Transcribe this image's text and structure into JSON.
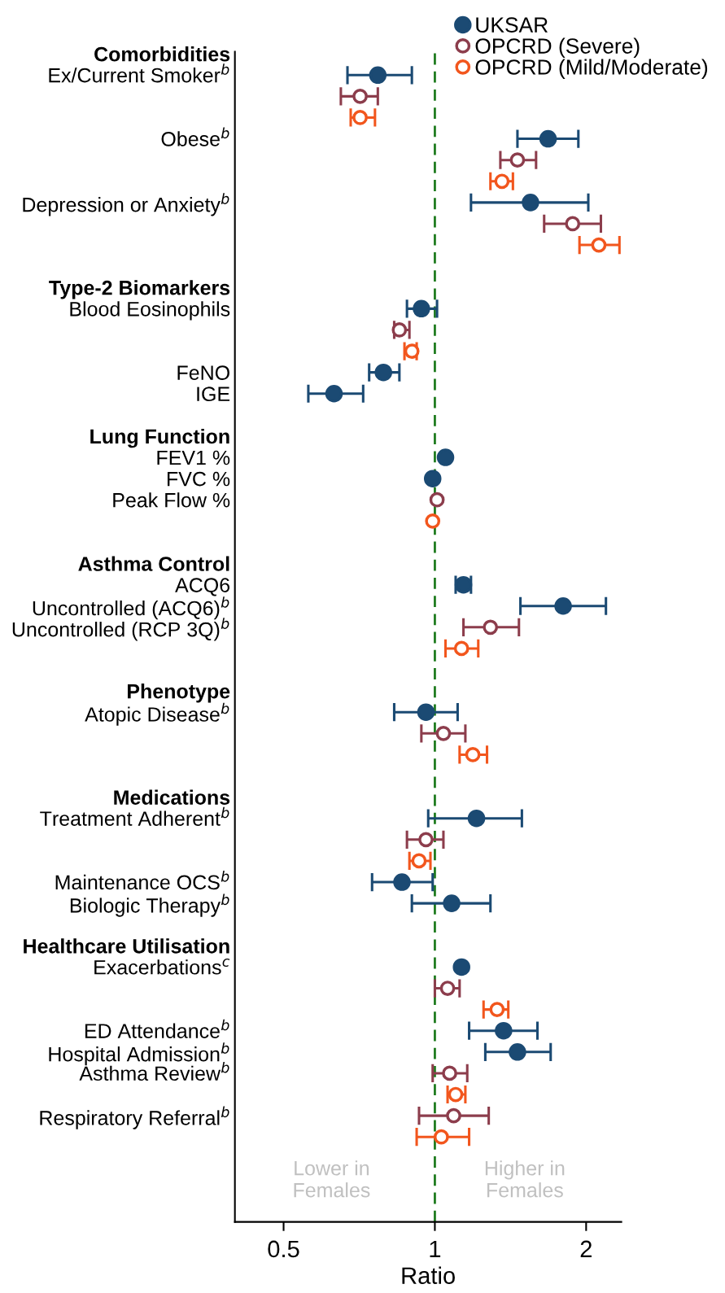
{
  "chart_data": {
    "type": "scatter",
    "orientation": "horizontal",
    "xlabel": "Ratio",
    "categories": [
      "Comorbidities",
      "Ex/Current Smoker$^{b}$",
      null,
      null,
      "Obese$^{b}$",
      null,
      null,
      "Depression or Anxiety$^{b}$",
      null,
      null,
      null,
      "Type-2 Biomarkers",
      "Blood Eosinophils",
      null,
      null,
      "FeNO",
      "IGE",
      null,
      "Lung Function",
      "FEV1 %",
      "FVC %",
      "Peak Flow %",
      null,
      null,
      "Asthma Control",
      "ACQ6",
      "Uncontrolled (ACQ6)$^{b}$",
      "Uncontrolled (RCP 3Q)$^{b}$",
      null,
      null,
      "Phenotype",
      "Atopic Disease$^{b}$",
      null,
      null,
      null,
      "Medications",
      "Treatment Adherent$^{b}$",
      null,
      null,
      "Maintenance OCS$^{b}$",
      "Biologic Therapy$^{b}$",
      null,
      "Healthcare Utilisation",
      "Exacerbations$^{c}$",
      null,
      null,
      "ED Attendance$^{b}$",
      "Hospital Admission$^{b}$",
      "Asthma Review$^{b}$",
      null,
      "Respiratory Referral$^{b}$",
      null,
      null,
      null,
      null
    ],
    "series": [
      {
        "name": "UKSAR",
        "color": "#1b4a73",
        "marker": "circle",
        "values": [
          null,
          0.77,
          null,
          null,
          1.68,
          null,
          null,
          1.55,
          null,
          null,
          null,
          null,
          0.94,
          null,
          null,
          0.79,
          0.63,
          null,
          null,
          1.05,
          0.99,
          null,
          null,
          null,
          null,
          1.14,
          1.8,
          null,
          null,
          null,
          null,
          0.96,
          null,
          null,
          null,
          null,
          1.21,
          null,
          null,
          0.86,
          1.08,
          null,
          null,
          1.13,
          null,
          null,
          1.37,
          1.46,
          null,
          null,
          null,
          null,
          null,
          null,
          null
        ],
        "errors": [
          null,
          [
            0.67,
            0.9
          ],
          null,
          null,
          [
            1.46,
            1.93
          ],
          null,
          null,
          [
            1.18,
            2.02
          ],
          null,
          null,
          null,
          null,
          [
            0.88,
            1.01
          ],
          null,
          null,
          [
            0.74,
            0.85
          ],
          [
            0.56,
            0.72
          ],
          null,
          null,
          null,
          null,
          null,
          null,
          null,
          null,
          [
            1.1,
            1.18
          ],
          [
            1.48,
            2.19
          ],
          null,
          null,
          null,
          null,
          [
            0.83,
            1.11
          ],
          null,
          null,
          null,
          null,
          [
            0.97,
            1.49
          ],
          null,
          null,
          [
            0.75,
            0.99
          ],
          [
            0.9,
            1.29
          ],
          null,
          null,
          null,
          null,
          null,
          [
            1.17,
            1.6
          ],
          [
            1.26,
            1.7
          ],
          null,
          null,
          null,
          null,
          null,
          null,
          null
        ]
      },
      {
        "name": "OPCRD (Severe)",
        "color": "#8c3d4c",
        "marker": "open circle",
        "values": [
          null,
          null,
          0.71,
          null,
          null,
          1.46,
          null,
          null,
          1.88,
          null,
          null,
          null,
          null,
          0.85,
          null,
          null,
          null,
          null,
          null,
          null,
          null,
          1.01,
          null,
          null,
          null,
          null,
          null,
          1.29,
          null,
          null,
          null,
          null,
          1.04,
          null,
          null,
          null,
          null,
          0.96,
          null,
          null,
          null,
          null,
          null,
          null,
          1.06,
          null,
          null,
          null,
          1.07,
          null,
          1.09,
          null,
          null,
          null,
          null
        ],
        "errors": [
          null,
          null,
          [
            0.65,
            0.77
          ],
          null,
          null,
          [
            1.35,
            1.59
          ],
          null,
          null,
          [
            1.65,
            2.14
          ],
          null,
          null,
          null,
          null,
          [
            0.83,
            0.89
          ],
          null,
          null,
          null,
          null,
          null,
          null,
          null,
          null,
          null,
          null,
          null,
          null,
          null,
          [
            1.14,
            1.47
          ],
          null,
          null,
          null,
          null,
          [
            0.94,
            1.15
          ],
          null,
          null,
          null,
          null,
          [
            0.88,
            1.04
          ],
          null,
          null,
          null,
          null,
          null,
          null,
          [
            1.0,
            1.12
          ],
          null,
          null,
          null,
          [
            0.99,
            1.16
          ],
          null,
          [
            0.93,
            1.28
          ],
          null,
          null,
          null,
          null
        ]
      },
      {
        "name": "OPCRD (Mild/Moderate)",
        "color": "#f2561d",
        "marker": "open circle",
        "values": [
          null,
          null,
          null,
          0.71,
          null,
          null,
          1.36,
          null,
          null,
          2.12,
          null,
          null,
          null,
          null,
          0.9,
          null,
          null,
          null,
          null,
          null,
          null,
          null,
          0.99,
          null,
          null,
          null,
          null,
          null,
          1.13,
          null,
          null,
          null,
          null,
          1.19,
          null,
          null,
          null,
          null,
          0.93,
          null,
          null,
          null,
          null,
          null,
          null,
          1.33,
          null,
          null,
          null,
          1.1,
          null,
          1.03,
          null,
          null,
          null
        ],
        "errors": [
          null,
          null,
          null,
          [
            0.68,
            0.76
          ],
          null,
          null,
          [
            1.29,
            1.43
          ],
          null,
          null,
          [
            1.94,
            2.33
          ],
          null,
          null,
          null,
          null,
          [
            0.87,
            0.92
          ],
          null,
          null,
          null,
          null,
          null,
          null,
          null,
          null,
          null,
          null,
          null,
          null,
          null,
          [
            1.05,
            1.22
          ],
          null,
          null,
          null,
          null,
          [
            1.12,
            1.27
          ],
          null,
          null,
          null,
          null,
          [
            0.89,
            0.98
          ],
          null,
          null,
          null,
          null,
          null,
          null,
          [
            1.25,
            1.4
          ],
          null,
          null,
          null,
          [
            1.06,
            1.15
          ],
          null,
          [
            0.92,
            1.17
          ],
          null,
          null,
          null
        ]
      }
    ],
    "log": "x",
    "xlim": [
      0.4,
      2.35
    ],
    "xticks": [
      0.5,
      1,
      2
    ],
    "grid": false,
    "legend": "top right",
    "ref_lines": [
      {
        "axis": "x",
        "value": 1,
        "color": "#1e7b1e",
        "line_style": "dashed"
      }
    ],
    "annotations": [
      "Lower in\nFemales",
      "Higher in\nFemales"
    ]
  }
}
